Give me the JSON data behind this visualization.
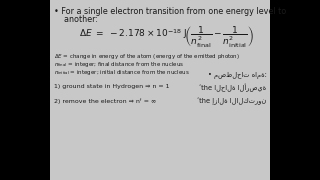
{
  "bg_color": "#000000",
  "content_bg": "#c8c8c8",
  "text_color": "#1a1a1a",
  "left_bar_width": 0.155,
  "right_bar_width": 0.155,
  "title_line1": "• For a single electron transition from one energy level to",
  "title_line2": "    another:",
  "def1": "ΔE = change in energy of the atom (energy of the emitted photon)",
  "def2_a": "n",
  "def2_b": "final",
  "def2_c": " = integer; final distance from the nucleus",
  "def3_a": "n",
  "def3_b": "initial",
  "def3_c": " = integer; initial distance from the nucleus",
  "arabic_title": "• مصطلحات هامة:",
  "item1_en": "1) ground state in Hydrogen ⇒ n = 1",
  "item1_ar": "ʼthe الحالة الأرضية",
  "item2_en": "2) remove the electron ⇒ nᶠ = ∞",
  "item2_ar": "ʼthe إزالة الالكترون"
}
